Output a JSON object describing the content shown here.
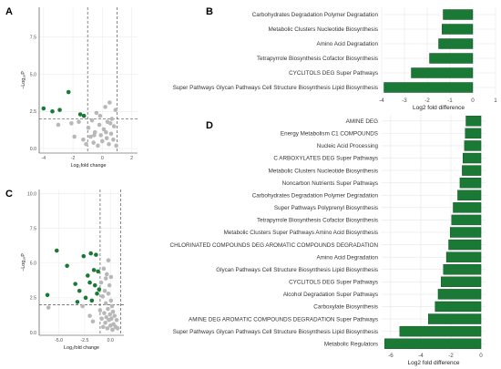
{
  "panels": {
    "A": "A",
    "B": "B",
    "C": "C",
    "D": "D"
  },
  "chart_data": [
    {
      "panel": "A",
      "type": "scatter",
      "xlabel": "Log₂fold change",
      "ylabel": "−Log₁₀P",
      "xlim": [
        -4.3,
        2.4
      ],
      "ylim": [
        -0.3,
        9.5
      ],
      "xticks": [
        -4,
        -2,
        0,
        2
      ],
      "yticks": [
        0.0,
        2.5,
        5.0,
        7.5
      ],
      "ytick_labels": [
        "0.0",
        "2.5",
        "5.0",
        "7.5"
      ],
      "vlines": [
        -1,
        1
      ],
      "hline": 2,
      "colors": {
        "significant": "#1a7a35",
        "nonsignificant": "#b8b8b8"
      },
      "significant": [
        [
          -4.0,
          2.7
        ],
        [
          -3.4,
          2.5
        ],
        [
          -2.9,
          2.6
        ],
        [
          -2.3,
          3.8
        ],
        [
          -1.5,
          2.3
        ],
        [
          -1.25,
          2.2
        ]
      ],
      "nonsignificant": [
        [
          -3.0,
          1.6
        ],
        [
          -2.1,
          1.7
        ],
        [
          -1.9,
          0.8
        ],
        [
          -1.6,
          1.8
        ],
        [
          -1.3,
          0.6
        ],
        [
          -1.1,
          0.3
        ],
        [
          -0.95,
          1.4
        ],
        [
          -0.8,
          0.8
        ],
        [
          -0.7,
          1.9
        ],
        [
          -0.6,
          0.4
        ],
        [
          -0.5,
          1.1
        ],
        [
          -0.4,
          2.4
        ],
        [
          -0.3,
          0.2
        ],
        [
          -0.2,
          1.6
        ],
        [
          -0.1,
          0.9
        ],
        [
          0.0,
          0.5
        ],
        [
          0.1,
          1.3
        ],
        [
          0.2,
          2.8
        ],
        [
          0.3,
          0.7
        ],
        [
          0.35,
          1.8
        ],
        [
          0.45,
          0.3
        ],
        [
          0.5,
          3.1
        ],
        [
          0.6,
          1.0
        ],
        [
          0.65,
          2.0
        ],
        [
          0.75,
          0.6
        ],
        [
          0.8,
          1.5
        ],
        [
          0.9,
          2.6
        ],
        [
          0.95,
          0.2
        ],
        [
          -0.15,
          2.2
        ],
        [
          -0.55,
          0.9
        ],
        [
          0.25,
          1.1
        ],
        [
          0.55,
          1.7
        ]
      ]
    },
    {
      "panel": "C",
      "type": "scatter",
      "xlabel": "Log₂fold change",
      "ylabel": "−Log₁₀P",
      "xlim": [
        -6.9,
        1.3
      ],
      "ylim": [
        -0.2,
        10.3
      ],
      "xticks": [
        -5.0,
        -2.5,
        0.0
      ],
      "xtick_labels": [
        "-5.0",
        "-2.5",
        "0.0"
      ],
      "yticks": [
        0.0,
        2.5,
        5.0,
        7.5,
        10.0
      ],
      "ytick_labels": [
        "0.0",
        "2.5",
        "5.0",
        "7.5",
        "10.0"
      ],
      "vlines": [
        -1,
        1
      ],
      "hline": 2,
      "colors": {
        "significant": "#1a7a35",
        "nonsignificant": "#b8b8b8"
      },
      "significant": [
        [
          -6.1,
          2.7
        ],
        [
          -5.2,
          5.9
        ],
        [
          -4.2,
          4.8
        ],
        [
          -3.4,
          3.5
        ],
        [
          -3.2,
          2.2
        ],
        [
          -3.0,
          3.0
        ],
        [
          -2.6,
          5.5
        ],
        [
          -2.4,
          2.5
        ],
        [
          -2.2,
          4.1
        ],
        [
          -2.0,
          3.6
        ],
        [
          -1.9,
          5.7
        ],
        [
          -1.8,
          2.3
        ],
        [
          -1.6,
          4.5
        ],
        [
          -1.5,
          3.4
        ],
        [
          -1.4,
          5.6
        ],
        [
          -1.3,
          2.8
        ],
        [
          -1.2,
          4.4
        ],
        [
          -1.1,
          3.1
        ]
      ],
      "nonsignificant": [
        [
          -6.0,
          1.8
        ],
        [
          -2.7,
          1.9
        ],
        [
          -2.0,
          1.2
        ],
        [
          -1.7,
          0.8
        ],
        [
          -1.0,
          1.6
        ],
        [
          -0.9,
          3.6
        ],
        [
          -0.85,
          1.0
        ],
        [
          -0.75,
          2.6
        ],
        [
          -0.7,
          0.4
        ],
        [
          -0.6,
          1.4
        ],
        [
          -0.55,
          3.0
        ],
        [
          -0.5,
          0.7
        ],
        [
          -0.45,
          2.1
        ],
        [
          -0.4,
          1.1
        ],
        [
          -0.35,
          4.2
        ],
        [
          -0.3,
          0.3
        ],
        [
          -0.25,
          1.7
        ],
        [
          -0.2,
          2.8
        ],
        [
          -0.15,
          0.9
        ],
        [
          -0.1,
          3.4
        ],
        [
          -0.05,
          1.3
        ],
        [
          0.0,
          0.5
        ],
        [
          0.05,
          2.3
        ],
        [
          0.1,
          1.0
        ],
        [
          0.15,
          1.9
        ],
        [
          0.2,
          0.2
        ],
        [
          0.25,
          1.5
        ],
        [
          0.3,
          0.6
        ],
        [
          0.4,
          1.2
        ],
        [
          0.5,
          0.4
        ],
        [
          0.6,
          0.9
        ],
        [
          0.7,
          0.3
        ],
        [
          -0.65,
          4.6
        ],
        [
          -0.45,
          3.9
        ],
        [
          -0.2,
          5.2
        ],
        [
          0.05,
          4.0
        ]
      ]
    },
    {
      "panel": "B",
      "type": "bar",
      "orientation": "horizontal",
      "xlabel": "Log2 fold difference",
      "xlim": [
        -4,
        1
      ],
      "xticks": [
        -4,
        -3,
        -2,
        -1,
        0,
        1
      ],
      "bar_color": "#1a7a35",
      "categories": [
        "Carbohydrates Degradation Polymer Degradation",
        "Metabolic Clusters Nucleotide Biosynthesis",
        "Amino Acid Degradation",
        "Tetrapyrrole Biosynthesis Cofactor Biosynthesis",
        "CYCLITOLS DEG Super Pathways",
        "Super Pathways Glycan Pathways Cell Structure Biosynthesis Lipid Biosynthesis"
      ],
      "values": [
        -1.3,
        -1.35,
        -1.5,
        -1.9,
        -2.7,
        -3.9
      ]
    },
    {
      "panel": "D",
      "type": "bar",
      "orientation": "horizontal",
      "xlabel": "Log2 fold difference",
      "xlim": [
        -6.6,
        0.3
      ],
      "xticks": [
        -6,
        -4,
        -2,
        0
      ],
      "bar_color": "#1a7a35",
      "categories": [
        "AMINE DEG",
        "Energy Metabolism C1 COMPOUNDS",
        "Nucleic Acid Processing",
        "C ARBOXYLATES DEG Super Pathways",
        "Metabolic Clusters Nucleotide Biosynthesis",
        "Noncarbon Nutrients Super Pathways",
        "Carbohydrates Degradation Polymer Degradation",
        "Super Pathways Polyprenyl Biosynthesis",
        "Tetrapyrrole Biosynthesis Cofactor Biosynthesis",
        "Metabolic Clusters Super Pathways Amino Acid Biosynthesis",
        "CHLORINATED COMPOUNDS DEG AROMATIC COMPOUNDS DEGRADATION",
        "Amino Acid Degradation",
        "Glycan Pathways Cell Structure Biosynthesis Lipid Biosynthesis",
        "CYCLITOLS DEG Super Pathways",
        "Alcohol Degradation Super Pathways",
        "Carboxylate Biosynthesis",
        "AMINE DEG AROMATIC COMPOUNDS DEGRADATION Super Pathways",
        "Super Pathways Glycan Pathways Cell Structure Biosynthesis Lipid Biosynthesis",
        "Metabolic Regulators"
      ],
      "values": [
        -1.0,
        -1.05,
        -1.1,
        -1.2,
        -1.25,
        -1.4,
        -1.55,
        -1.85,
        -1.95,
        -2.05,
        -2.15,
        -2.3,
        -2.5,
        -2.65,
        -2.85,
        -3.05,
        -3.5,
        -5.4,
        -6.4
      ]
    }
  ]
}
